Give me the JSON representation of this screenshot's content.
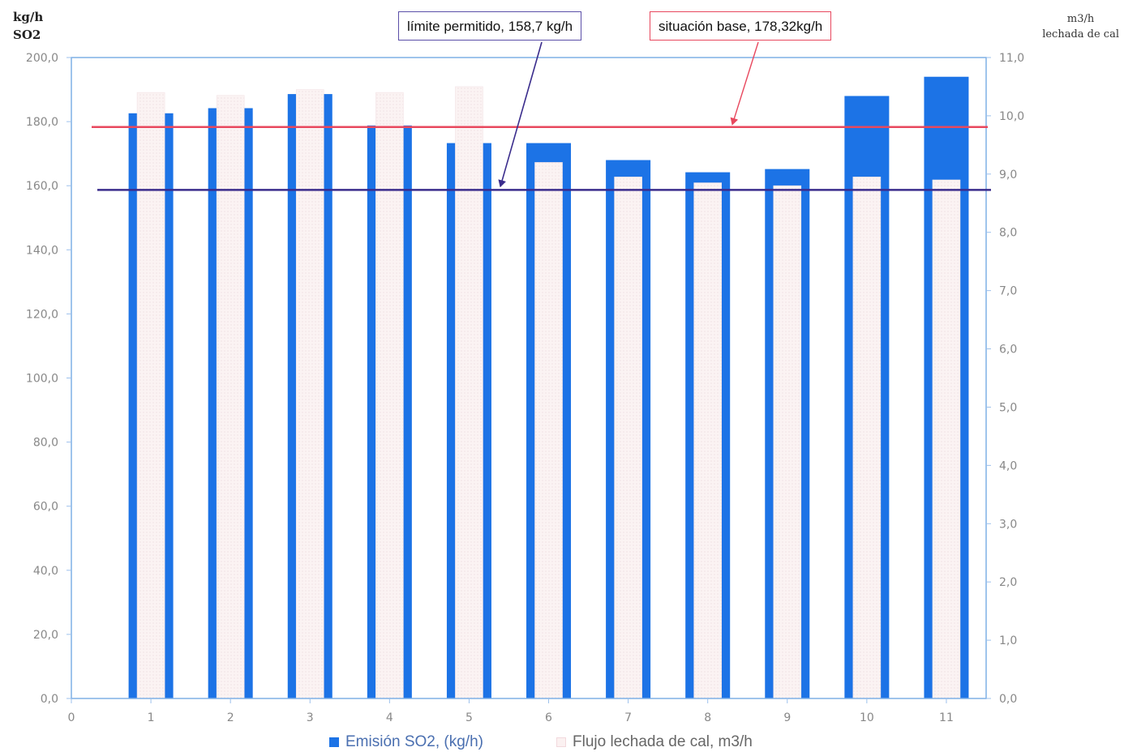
{
  "chart_data": {
    "type": "bar",
    "left_axis_title": [
      "kg/h",
      "SO2"
    ],
    "right_axis_title": [
      "m3/h",
      "lechada de cal"
    ],
    "categories": [
      "1",
      "2",
      "3",
      "4",
      "5",
      "6",
      "7",
      "8",
      "9",
      "10",
      "11"
    ],
    "x_ticks": [
      "0",
      "1",
      "2",
      "3",
      "4",
      "5",
      "6",
      "7",
      "8",
      "9",
      "10",
      "11"
    ],
    "y_left": {
      "min": 0,
      "max": 200,
      "step": 20,
      "tick_labels": [
        "0,0",
        "20,0",
        "40,0",
        "60,0",
        "80,0",
        "100,0",
        "120,0",
        "140,0",
        "160,0",
        "180,0",
        "200,0"
      ]
    },
    "y_right": {
      "min": 0,
      "max": 11,
      "step": 1,
      "tick_labels": [
        "0,0",
        "1,0",
        "2,0",
        "3,0",
        "4,0",
        "5,0",
        "6,0",
        "7,0",
        "8,0",
        "9,0",
        "10,0",
        "11,0"
      ]
    },
    "series": [
      {
        "name": "Emisión SO2, (kg/h)",
        "axis": "left",
        "color": "#1c73e6",
        "values": [
          182.6,
          184.2,
          188.6,
          178.8,
          173.3,
          173.3,
          168.0,
          164.2,
          165.2,
          188.0,
          194.0
        ]
      },
      {
        "name": "Flujo lechada de cal, m3/h",
        "axis": "right",
        "color": "#fbf1f1",
        "values": [
          10.4,
          10.35,
          10.45,
          10.4,
          10.5,
          9.2,
          8.95,
          8.85,
          8.8,
          8.95,
          8.9
        ]
      }
    ],
    "reference_lines": [
      {
        "label": "límite permitido, 158,7 kg/h",
        "value": 158.7,
        "color": "#3a2c8c"
      },
      {
        "label": "situación base, 178,32kg/h",
        "value": 178.32,
        "color": "#e8485e"
      }
    ],
    "grid": false,
    "legend_position": "bottom"
  },
  "colors": {
    "plot_border": "#7fb0e6",
    "axis_line": "#9cc0ec",
    "tick_text": "#888888",
    "limit_line": "#3a2c8c",
    "base_line": "#e8485e"
  }
}
